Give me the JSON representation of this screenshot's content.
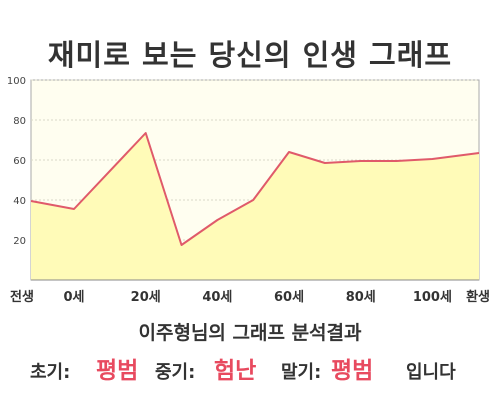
{
  "title": "재미로 보는 당신의 인생 그래프",
  "chart_data": {
    "type": "area",
    "x": [
      -12,
      0,
      20,
      30,
      40,
      50,
      60,
      70,
      80,
      90,
      100,
      113
    ],
    "values": [
      39.5,
      35.5,
      73.5,
      17.5,
      30,
      40,
      64,
      58.5,
      59.5,
      59.5,
      60.5,
      63.5
    ],
    "x_ticks": [
      {
        "x": -12,
        "label": "전생"
      },
      {
        "x": 0,
        "label": "0세"
      },
      {
        "x": 20,
        "label": "20세"
      },
      {
        "x": 40,
        "label": "40세"
      },
      {
        "x": 60,
        "label": "60세"
      },
      {
        "x": 80,
        "label": "80세"
      },
      {
        "x": 100,
        "label": "100세"
      },
      {
        "x": 113,
        "label": "환생"
      }
    ],
    "y_ticks": [
      "20",
      "40",
      "60",
      "80",
      "100"
    ],
    "ylim": [
      0,
      100
    ],
    "xlim": [
      -12,
      113
    ],
    "grid": true,
    "line_color": "#e05a6a",
    "fill_color": "#fffbb8",
    "background_color": "#fffef0"
  },
  "summary": {
    "subtitle": "이주형님의 그래프 분석결과",
    "early_label": "초기:",
    "early_value": "평범",
    "middle_label": "중기:",
    "middle_value": "험난",
    "late_label": "말기:",
    "late_value": "평범",
    "suffix": "입니다",
    "highlight_color": "#e84a5f"
  }
}
